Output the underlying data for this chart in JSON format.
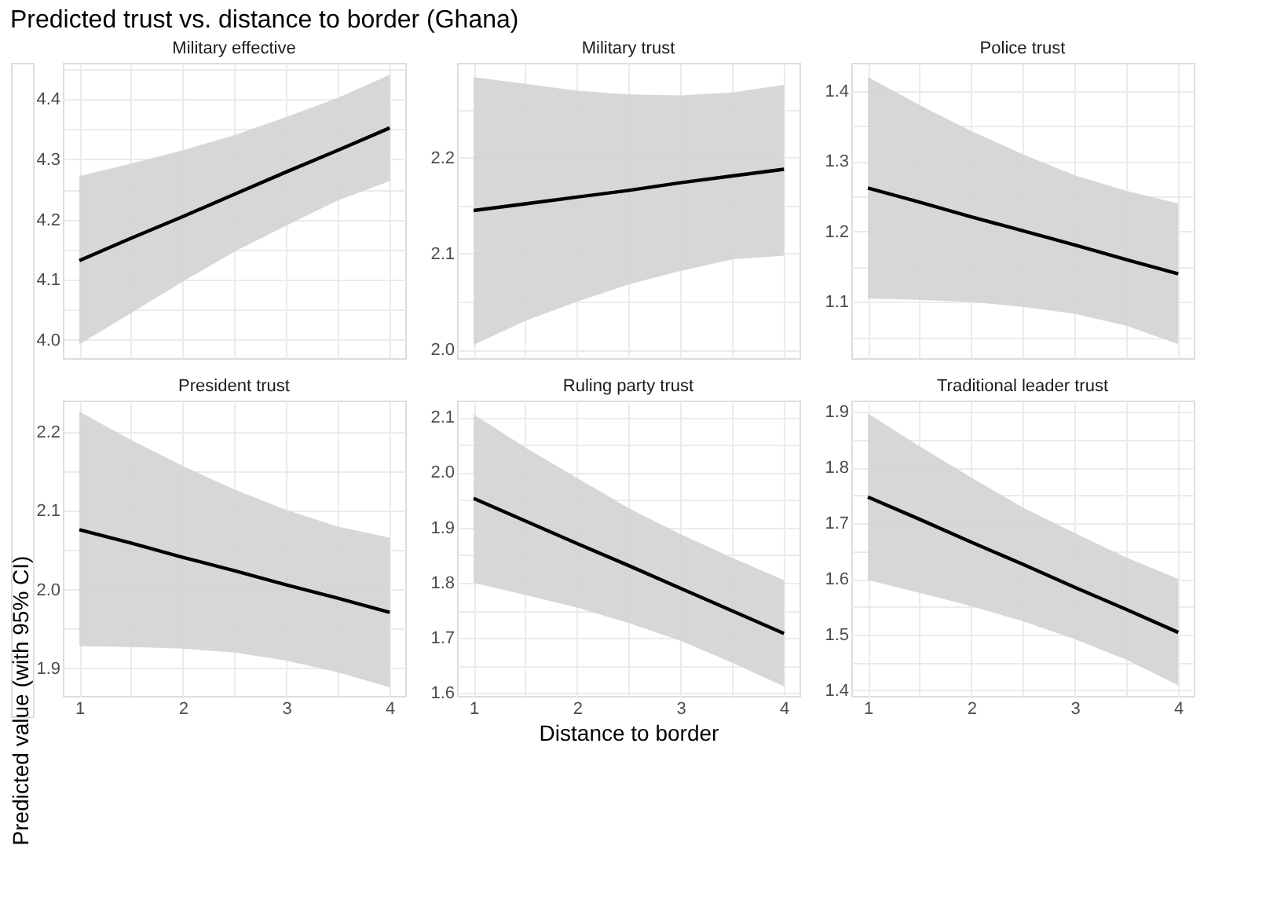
{
  "chart_data": [
    {
      "type": "line",
      "title": "Military effective",
      "annotations": [
        "Predicted trust vs. distance to border (Ghana)"
      ],
      "x": [
        1,
        1.5,
        2,
        2.5,
        3,
        3.5,
        4
      ],
      "tick_labels": "y",
      "grid": true,
      "series": [
        {
          "color": "#000000",
          "values": [
            4.132,
            4.169,
            4.205,
            4.242,
            4.279,
            4.315,
            4.352
          ],
          "lower": [
            3.993,
            4.045,
            4.097,
            4.147,
            4.19,
            4.232,
            4.264
          ],
          "upper": [
            4.272,
            4.293,
            4.315,
            4.34,
            4.37,
            4.402,
            4.44
          ]
        }
      ],
      "xlim": [
        0.84,
        4.15
      ],
      "xticks": [
        1,
        {
          "value": 1.5,
          "label": null
        },
        2,
        {
          "value": 2.5,
          "label": null
        },
        3,
        {
          "value": 3.5,
          "label": null
        },
        4
      ],
      "ylim": [
        3.97,
        4.46
      ],
      "yticks": [
        {
          "value": 4,
          "label": "4.0"
        },
        {
          "value": 4.05,
          "label": null
        },
        4.1,
        {
          "value": 4.15,
          "label": null
        },
        4.2,
        {
          "value": 4.25,
          "label": null
        },
        4.3,
        {
          "value": 4.35,
          "label": null
        },
        4.4,
        {
          "value": 4.45,
          "label": null
        }
      ]
    },
    {
      "type": "line",
      "title": "Military trust",
      "x": [
        1,
        1.5,
        2,
        2.5,
        3,
        3.5,
        4
      ],
      "tick_labels": "y",
      "grid": true,
      "series": [
        {
          "color": "#000000",
          "values": [
            2.145,
            2.152,
            2.159,
            2.166,
            2.174,
            2.181,
            2.188
          ],
          "lower": [
            2.005,
            2.03,
            2.05,
            2.068,
            2.082,
            2.094,
            2.098
          ],
          "upper": [
            2.284,
            2.277,
            2.27,
            2.266,
            2.265,
            2.268,
            2.276
          ]
        }
      ],
      "xlim": [
        0.84,
        4.15
      ],
      "xticks": [
        1,
        {
          "value": 1.5,
          "label": null
        },
        2,
        {
          "value": 2.5,
          "label": null
        },
        3,
        {
          "value": 3.5,
          "label": null
        },
        4
      ],
      "ylim": [
        1.991,
        2.299
      ],
      "yticks": [
        {
          "value": 2,
          "label": "2.0"
        },
        {
          "value": 2.05,
          "label": null
        },
        2.1,
        {
          "value": 2.15,
          "label": null
        },
        2.2,
        {
          "value": 2.25,
          "label": null
        }
      ]
    },
    {
      "type": "line",
      "title": "Police trust",
      "x": [
        1,
        1.5,
        2,
        2.5,
        3,
        3.5,
        4
      ],
      "tick_labels": "y",
      "grid": true,
      "series": [
        {
          "color": "#000000",
          "values": [
            1.262,
            1.242,
            1.221,
            1.201,
            1.181,
            1.16,
            1.14
          ],
          "lower": [
            1.105,
            1.103,
            1.1,
            1.093,
            1.083,
            1.066,
            1.04
          ],
          "upper": [
            1.42,
            1.38,
            1.343,
            1.31,
            1.28,
            1.258,
            1.24
          ]
        }
      ],
      "xlim": [
        0.84,
        4.15
      ],
      "xticks": [
        1,
        {
          "value": 1.5,
          "label": null
        },
        2,
        {
          "value": 2.5,
          "label": null
        },
        3,
        {
          "value": 3.5,
          "label": null
        },
        4
      ],
      "ylim": [
        1.02,
        1.44
      ],
      "yticks": [
        {
          "value": 1.05,
          "label": null
        },
        1.1,
        {
          "value": 1.15,
          "label": null
        },
        1.2,
        {
          "value": 1.25,
          "label": null
        },
        1.3,
        {
          "value": 1.35,
          "label": null
        },
        1.4
      ]
    },
    {
      "type": "line",
      "title": "President trust",
      "ylabel": "Predicted value (with 95% CI)",
      "x": [
        1,
        1.5,
        2,
        2.5,
        3,
        3.5,
        4
      ],
      "grid": true,
      "series": [
        {
          "color": "#000000",
          "values": [
            2.076,
            2.059,
            2.041,
            2.024,
            2.006,
            1.989,
            1.971
          ],
          "lower": [
            1.928,
            1.927,
            1.925,
            1.92,
            1.91,
            1.895,
            1.876
          ],
          "upper": [
            2.226,
            2.19,
            2.157,
            2.127,
            2.101,
            2.08,
            2.066
          ]
        }
      ],
      "xlim": [
        0.84,
        4.15
      ],
      "xticks": [
        1,
        {
          "value": 1.5,
          "label": null
        },
        2,
        {
          "value": 2.5,
          "label": null
        },
        3,
        {
          "value": 3.5,
          "label": null
        },
        4
      ],
      "ylim": [
        1.865,
        2.24
      ],
      "yticks": [
        1.9,
        {
          "value": 1.95,
          "label": null
        },
        {
          "value": 2,
          "label": "2.0"
        },
        {
          "value": 2.05,
          "label": null
        },
        2.1,
        {
          "value": 2.15,
          "label": null
        },
        2.2
      ]
    },
    {
      "type": "line",
      "title": "Ruling party trust",
      "xlabel": "Distance to border",
      "x": [
        1,
        1.5,
        2,
        2.5,
        3,
        3.5,
        4
      ],
      "grid": true,
      "series": [
        {
          "color": "#000000",
          "values": [
            1.953,
            1.912,
            1.871,
            1.831,
            1.79,
            1.749,
            1.708
          ],
          "lower": [
            1.8,
            1.778,
            1.755,
            1.727,
            1.695,
            1.655,
            1.612
          ],
          "upper": [
            2.105,
            2.045,
            1.99,
            1.935,
            1.888,
            1.845,
            1.805
          ]
        }
      ],
      "xlim": [
        0.84,
        4.15
      ],
      "xticks": [
        1,
        {
          "value": 1.5,
          "label": null
        },
        2,
        {
          "value": 2.5,
          "label": null
        },
        3,
        {
          "value": 3.5,
          "label": null
        },
        4
      ],
      "ylim": [
        1.595,
        2.13
      ],
      "yticks": [
        1.6,
        {
          "value": 1.65,
          "label": null
        },
        1.7,
        {
          "value": 1.75,
          "label": null
        },
        1.8,
        {
          "value": 1.85,
          "label": null
        },
        1.9,
        {
          "value": 1.95,
          "label": null
        },
        {
          "value": 2,
          "label": "2.0"
        },
        {
          "value": 2.05,
          "label": null
        },
        2.1
      ]
    },
    {
      "type": "line",
      "title": "Traditional leader trust",
      "x": [
        1,
        1.5,
        2,
        2.5,
        3,
        3.5,
        4
      ],
      "grid": true,
      "series": [
        {
          "color": "#000000",
          "values": [
            1.747,
            1.707,
            1.666,
            1.626,
            1.585,
            1.545,
            1.504
          ],
          "lower": [
            1.598,
            1.575,
            1.551,
            1.524,
            1.492,
            1.455,
            1.409
          ],
          "upper": [
            1.897,
            1.838,
            1.782,
            1.728,
            1.682,
            1.638,
            1.6
          ]
        }
      ],
      "xlim": [
        0.84,
        4.15
      ],
      "xticks": [
        1,
        {
          "value": 1.5,
          "label": null
        },
        2,
        {
          "value": 2.5,
          "label": null
        },
        3,
        {
          "value": 3.5,
          "label": null
        },
        4
      ],
      "ylim": [
        1.39,
        1.92
      ],
      "yticks": [
        1.4,
        {
          "value": 1.45,
          "label": null
        },
        1.5,
        {
          "value": 1.55,
          "label": null
        },
        1.6,
        {
          "value": 1.65,
          "label": null
        },
        1.7,
        {
          "value": 1.75,
          "label": null
        },
        1.8,
        {
          "value": 1.85,
          "label": null
        },
        1.9
      ]
    }
  ]
}
